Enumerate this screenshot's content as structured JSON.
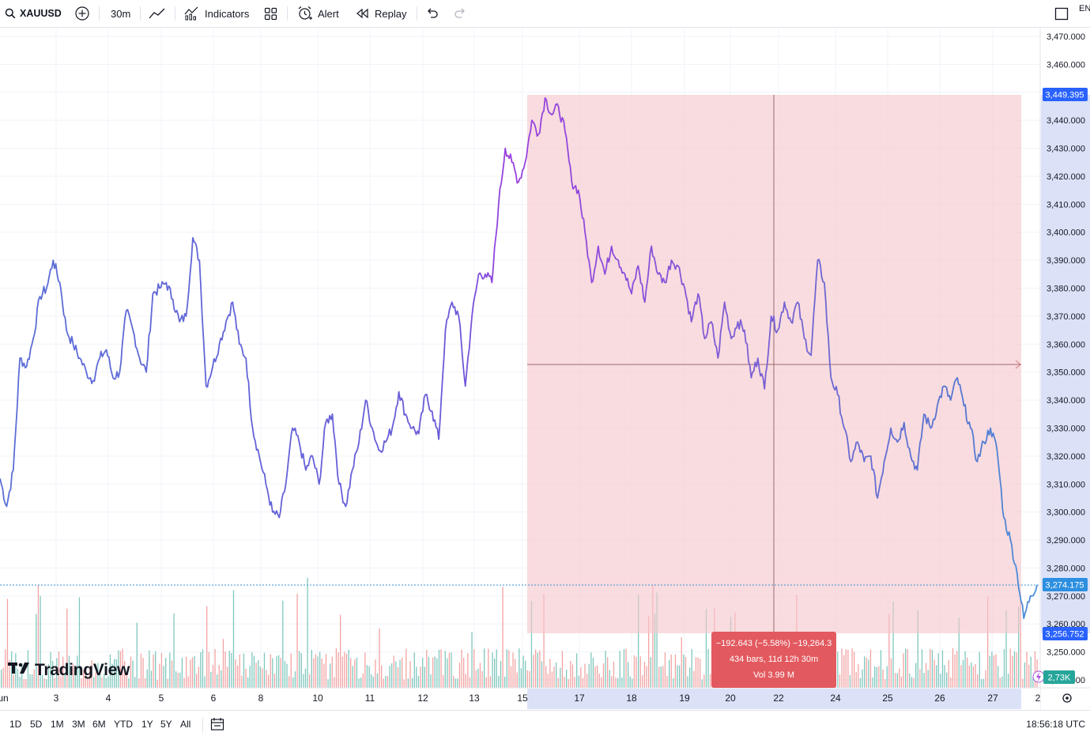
{
  "toolbar": {
    "symbol": "XAUUSD",
    "interval": "30m",
    "indicators_label": "Indicators",
    "alert_label": "Alert",
    "replay_label": "Replay",
    "lang": "EN"
  },
  "bottombar": {
    "ranges": [
      "1D",
      "5D",
      "1M",
      "3M",
      "6M",
      "YTD",
      "1Y",
      "5Y",
      "All"
    ],
    "clock": "18:56:18 UTC"
  },
  "watermark": "TradingView",
  "measure": {
    "line1": "−192.643 (−5.58%) −19,264.3",
    "line2": "434 bars, 11d 12h 30m",
    "line3": "Vol 3.99 M"
  },
  "price_tags": {
    "high": "3,449.395",
    "last": "3,274.175",
    "low": "3,256.752",
    "volume": "2,73K"
  },
  "colors": {
    "line_start": "#5b6fd6",
    "line_peak": "#9a3fe0",
    "line_end": "#4a90d9",
    "measure_fill": "#f5c6cb",
    "measure_label": "#e2595f",
    "vol_up": "#7fc8bd",
    "vol_down": "#f3a3a3",
    "tag_blue": "#2962ff",
    "tag_green": "#26a69a"
  },
  "chart_data": {
    "type": "line",
    "x_tick_labels": [
      "un",
      "3",
      "4",
      "5",
      "6",
      "8",
      "10",
      "11",
      "12",
      "13",
      "15",
      "17",
      "18",
      "19",
      "20",
      "22",
      "24",
      "25",
      "26",
      "27",
      "2"
    ],
    "y_tick_labels": [
      "3,470.000",
      "3,460.000",
      "3,450.000",
      "3,440.000",
      "3,430.000",
      "3,420.000",
      "3,410.000",
      "3,400.000",
      "3,390.000",
      "3,380.000",
      "3,370.000",
      "3,360.000",
      "3,350.000",
      "3,340.000",
      "3,330.000",
      "3,320.000",
      "3,310.000",
      "3,300.000",
      "3,290.000",
      "3,280.000",
      "3,270.000",
      "3,260.000",
      "3,250.000",
      "3,240.000"
    ],
    "ylim": [
      3234,
      3472
    ],
    "series": [
      {
        "values": [
          3312,
          3302,
          3315,
          3355,
          3352,
          3362,
          3377,
          3380,
          3390,
          3382,
          3365,
          3360,
          3355,
          3350,
          3347,
          3355,
          3358,
          3348,
          3350,
          3372,
          3365,
          3355,
          3350,
          3378,
          3380,
          3382,
          3376,
          3368,
          3370,
          3398,
          3390,
          3345,
          3352,
          3360,
          3368,
          3375,
          3360,
          3355,
          3330,
          3320,
          3310,
          3300,
          3298,
          3310,
          3330,
          3325,
          3315,
          3320,
          3310,
          3332,
          3335,
          3310,
          3302,
          3315,
          3325,
          3340,
          3330,
          3322,
          3325,
          3330,
          3343,
          3335,
          3330,
          3328,
          3342,
          3336,
          3326,
          3365,
          3375,
          3370,
          3345,
          3370,
          3385,
          3385,
          3382,
          3410,
          3430,
          3425,
          3418,
          3425,
          3440,
          3435,
          3448,
          3442,
          3445,
          3436,
          3418,
          3415,
          3400,
          3382,
          3395,
          3385,
          3395,
          3390,
          3385,
          3378,
          3388,
          3375,
          3395,
          3385,
          3382,
          3390,
          3388,
          3380,
          3368,
          3378,
          3362,
          3368,
          3355,
          3375,
          3362,
          3368,
          3365,
          3348,
          3355,
          3344,
          3370,
          3365,
          3375,
          3368,
          3375,
          3362,
          3356,
          3390,
          3382,
          3348,
          3342,
          3330,
          3318,
          3325,
          3318,
          3320,
          3305,
          3318,
          3330,
          3325,
          3332,
          3320,
          3315,
          3335,
          3330,
          3338,
          3345,
          3340,
          3348,
          3338,
          3330,
          3318,
          3325,
          3330,
          3322,
          3298,
          3290,
          3278,
          3262,
          3270,
          3274
        ]
      }
    ],
    "measure_range": {
      "from_value": 3449.395,
      "to_value": 3256.752
    }
  }
}
